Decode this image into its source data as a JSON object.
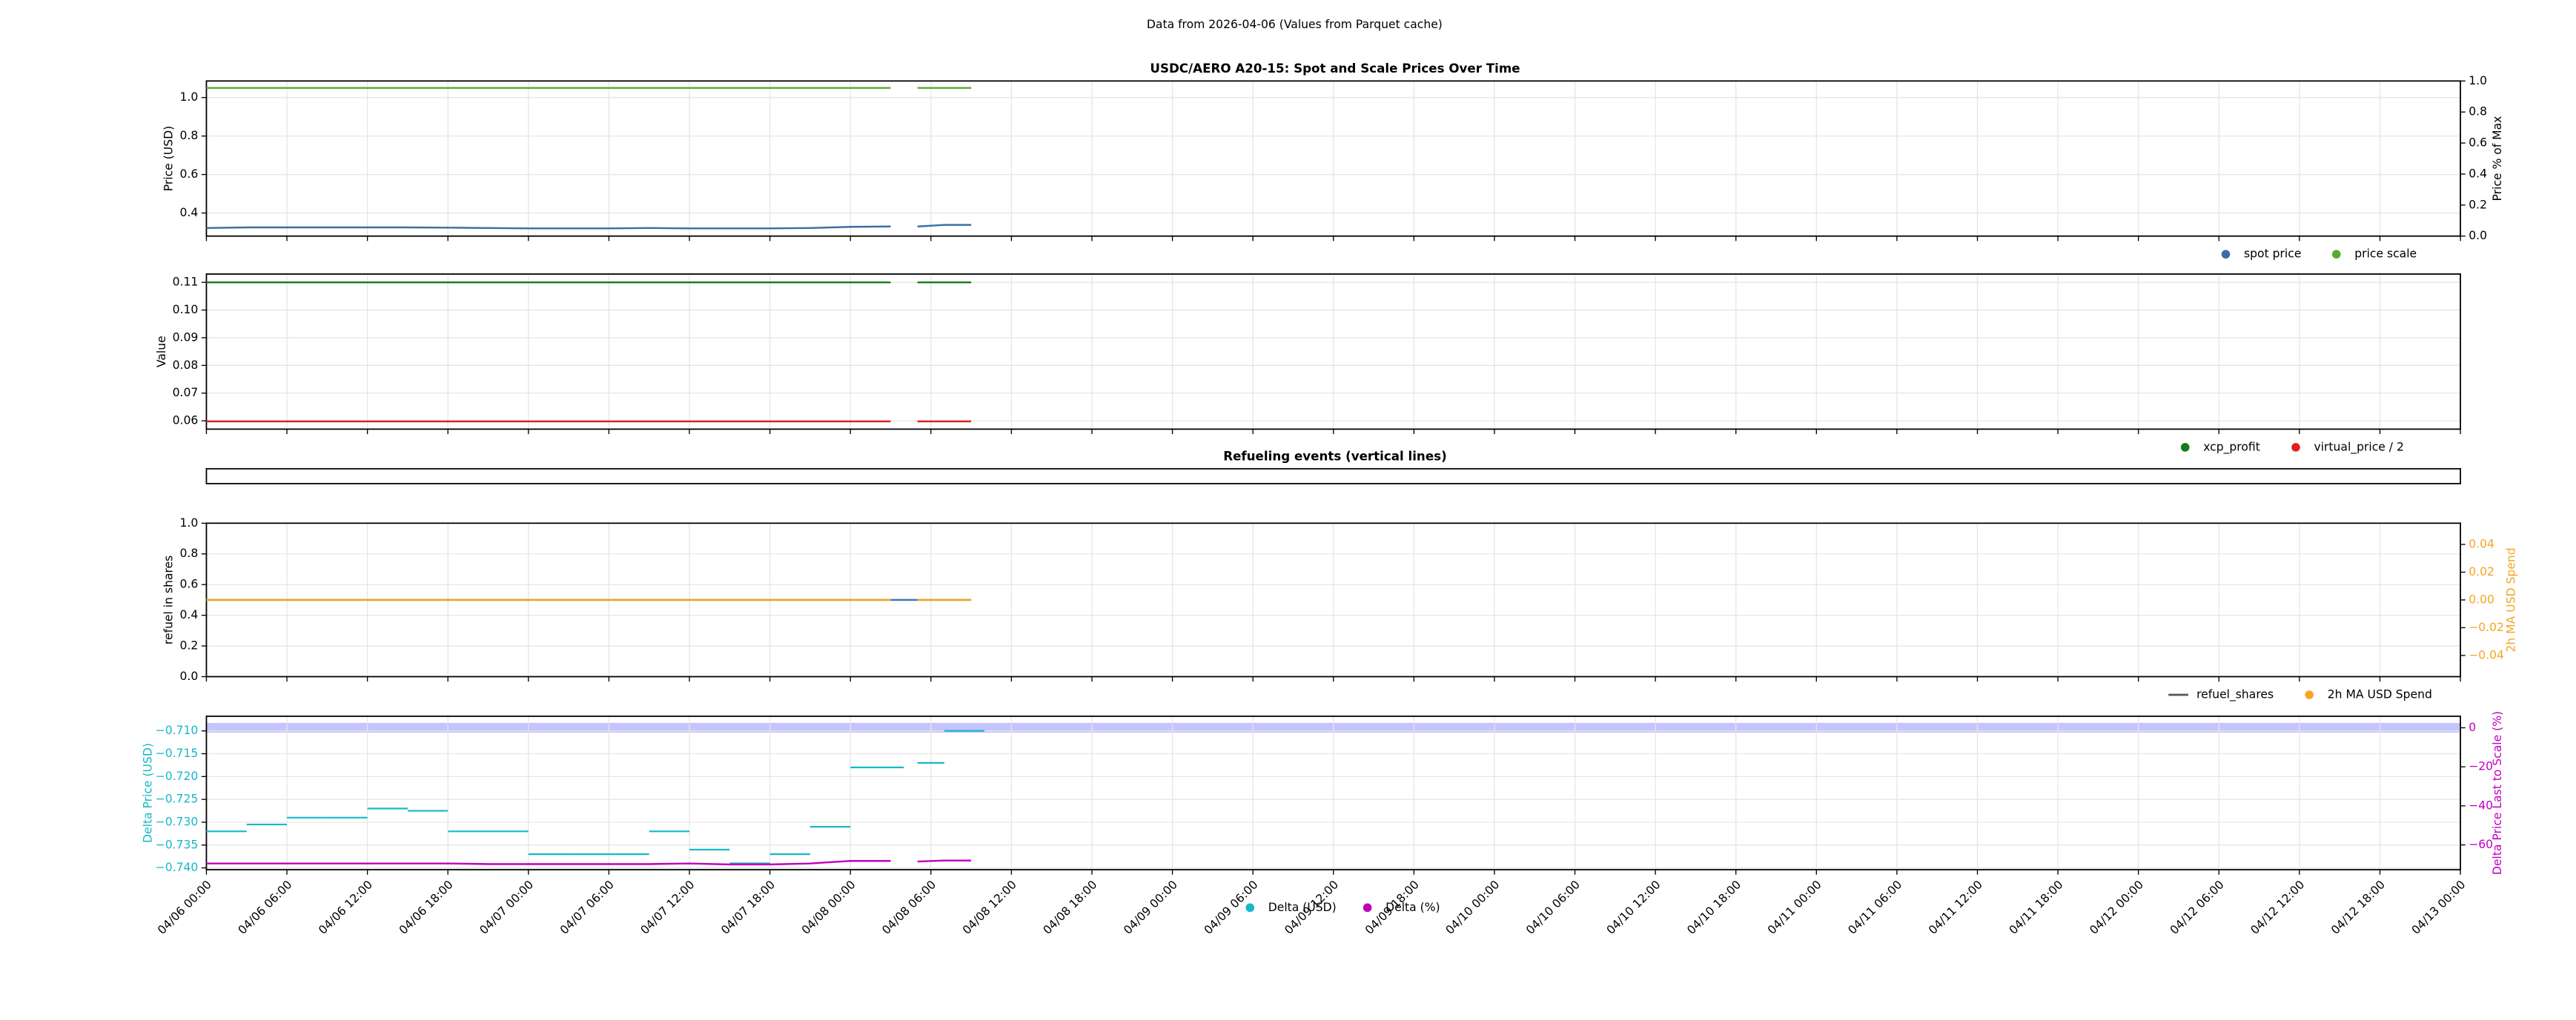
{
  "suptitle": "Data from 2026-04-06 (Values from Parquet cache)",
  "chart_data": [
    {
      "type": "line",
      "title": "USDC/AERO A20-15: Spot and Scale Prices Over Time",
      "ylabel": "Price (USD)",
      "y2label": "Price % of Max",
      "xlim": [
        0,
        168
      ],
      "xticks": [
        0,
        6,
        12,
        18,
        24,
        30,
        36,
        42,
        48,
        54,
        60,
        66,
        72,
        78,
        84,
        90,
        96,
        102,
        108,
        114,
        120,
        126,
        132,
        138,
        144,
        150,
        156,
        162,
        168
      ],
      "ylim": [
        0.28,
        1.086
      ],
      "yticks": [
        0.4,
        0.6,
        0.8,
        {
          "value": 1,
          "label": "1.0"
        }
      ],
      "y2lim": [
        0,
        1
      ],
      "y2ticks": [
        {
          "value": 0,
          "label": "0.0"
        },
        0.2,
        0.4,
        0.6,
        0.8,
        {
          "value": 1,
          "label": "1.0"
        }
      ],
      "grid": true,
      "legend": "below-right",
      "x": [
        0,
        3,
        6,
        9,
        12,
        15,
        18,
        21,
        24,
        27,
        30,
        33,
        36,
        39,
        42,
        45,
        48,
        51,
        52,
        53,
        55,
        57
      ],
      "series": [
        {
          "name": "spot price",
          "color": "#3a6ea5",
          "marker": "dot",
          "values": [
            0.322,
            0.325,
            0.325,
            0.325,
            0.325,
            0.325,
            0.324,
            0.322,
            0.32,
            0.32,
            0.32,
            0.322,
            0.32,
            0.32,
            0.32,
            0.322,
            0.328,
            0.33,
            null,
            0.33,
            0.338,
            0.338
          ]
        },
        {
          "name": "price scale",
          "color": "#5ca832",
          "marker": "dot",
          "values": [
            1.05,
            1.05,
            1.05,
            1.05,
            1.05,
            1.05,
            1.05,
            1.05,
            1.05,
            1.05,
            1.05,
            1.05,
            1.05,
            1.05,
            1.05,
            1.05,
            1.05,
            1.05,
            null,
            1.05,
            1.05,
            1.05
          ]
        }
      ]
    },
    {
      "type": "line",
      "ylabel": "Value",
      "xlim": [
        0,
        168
      ],
      "xticks": [
        0,
        6,
        12,
        18,
        24,
        30,
        36,
        42,
        48,
        54,
        60,
        66,
        72,
        78,
        84,
        90,
        96,
        102,
        108,
        114,
        120,
        126,
        132,
        138,
        144,
        150,
        156,
        162,
        168
      ],
      "ylim": [
        0.057,
        0.113
      ],
      "yticks": [
        0.06,
        0.07,
        0.08,
        0.09,
        {
          "value": 0.1,
          "label": "0.10"
        },
        0.11
      ],
      "grid": true,
      "legend": "below-right",
      "x": [
        0,
        3,
        6,
        9,
        12,
        15,
        18,
        21,
        24,
        27,
        30,
        33,
        36,
        39,
        42,
        45,
        48,
        51,
        52,
        53,
        55,
        57
      ],
      "series": [
        {
          "name": "xcp_profit",
          "color": "#1a7a1a",
          "marker": "dot",
          "values": [
            0.11,
            0.11,
            0.11,
            0.11,
            0.11,
            0.11,
            0.11,
            0.11,
            0.11,
            0.11,
            0.11,
            0.11,
            0.11,
            0.11,
            0.11,
            0.11,
            0.11,
            0.11,
            null,
            0.11,
            0.11,
            0.11
          ]
        },
        {
          "name": "virtual_price / 2",
          "color": "#e02020",
          "marker": "dot",
          "values": [
            0.0598,
            0.0598,
            0.0598,
            0.0598,
            0.0598,
            0.0598,
            0.0598,
            0.0598,
            0.0598,
            0.0598,
            0.0598,
            0.0598,
            0.0598,
            0.0598,
            0.0598,
            0.0598,
            0.0598,
            0.0598,
            null,
            0.0598,
            0.0598,
            0.0598
          ]
        }
      ]
    },
    {
      "type": "line",
      "title": "Refueling events (vertical lines)",
      "xlim": [
        0,
        168
      ],
      "series": []
    },
    {
      "type": "line",
      "ylabel": "refuel in shares",
      "y2label": "2h MA USD Spend",
      "y2label_color": "#f5a623",
      "xlim": [
        0,
        168
      ],
      "xticks": [
        0,
        6,
        12,
        18,
        24,
        30,
        36,
        42,
        48,
        54,
        60,
        66,
        72,
        78,
        84,
        90,
        96,
        102,
        108,
        114,
        120,
        126,
        132,
        138,
        144,
        150,
        156,
        162,
        168
      ],
      "ylim": [
        0,
        1
      ],
      "yticks": [
        {
          "value": 0,
          "label": "0.0"
        },
        0.2,
        0.4,
        0.6,
        0.8,
        {
          "value": 1,
          "label": "1.0"
        }
      ],
      "y2lim": [
        -0.0553,
        0.0553
      ],
      "y2ticks": [
        {
          "value": -0.04,
          "label": "−0.04"
        },
        {
          "value": -0.02,
          "label": "−0.02"
        },
        {
          "value": 0,
          "label": "0.00"
        },
        0.02,
        0.04
      ],
      "grid": true,
      "legend": "below-right",
      "x": [
        0,
        3,
        6,
        9,
        12,
        15,
        18,
        21,
        24,
        27,
        30,
        33,
        36,
        39,
        42,
        45,
        48,
        51,
        52,
        53,
        55,
        57
      ],
      "series": [
        {
          "name": "refuel_shares",
          "color": "#4c72b0",
          "marker": "line",
          "values": [
            0.5,
            0.5,
            0.5,
            0.5,
            0.5,
            0.5,
            0.5,
            0.5,
            0.5,
            0.5,
            0.5,
            0.5,
            0.5,
            0.5,
            0.5,
            0.5,
            0.5,
            0.5,
            0.5,
            0.5,
            0.5,
            0.5
          ]
        },
        {
          "name": "2h MA USD Spend",
          "color": "#f5a623",
          "marker": "dot",
          "axis": "y2",
          "values": [
            0,
            0,
            0,
            0,
            0,
            0,
            0,
            0,
            0,
            0,
            0,
            0,
            0,
            0,
            0,
            0,
            0,
            0,
            null,
            0,
            0,
            0
          ]
        }
      ]
    },
    {
      "type": "line",
      "ylabel": "Delta Price (USD)",
      "y2label": "Delta Price Last to Scale (%)",
      "ylabel_color": "#17b8c8",
      "y2label_color": "#c000c0",
      "xlim": [
        0,
        168
      ],
      "xticks": [
        {
          "value": 0,
          "label": "04/06 00:00"
        },
        {
          "value": 6,
          "label": "04/06 06:00"
        },
        {
          "value": 12,
          "label": "04/06 12:00"
        },
        {
          "value": 18,
          "label": "04/06 18:00"
        },
        {
          "value": 24,
          "label": "04/07 00:00"
        },
        {
          "value": 30,
          "label": "04/07 06:00"
        },
        {
          "value": 36,
          "label": "04/07 12:00"
        },
        {
          "value": 42,
          "label": "04/07 18:00"
        },
        {
          "value": 48,
          "label": "04/08 00:00"
        },
        {
          "value": 54,
          "label": "04/08 06:00"
        },
        {
          "value": 60,
          "label": "04/08 12:00"
        },
        {
          "value": 66,
          "label": "04/08 18:00"
        },
        {
          "value": 72,
          "label": "04/09 00:00"
        },
        {
          "value": 78,
          "label": "04/09 06:00"
        },
        {
          "value": 84,
          "label": "04/09 12:00"
        },
        {
          "value": 90,
          "label": "04/09 18:00"
        },
        {
          "value": 96,
          "label": "04/10 00:00"
        },
        {
          "value": 102,
          "label": "04/10 06:00"
        },
        {
          "value": 108,
          "label": "04/10 12:00"
        },
        {
          "value": 114,
          "label": "04/10 18:00"
        },
        {
          "value": 120,
          "label": "04/11 00:00"
        },
        {
          "value": 126,
          "label": "04/11 06:00"
        },
        {
          "value": 132,
          "label": "04/11 12:00"
        },
        {
          "value": 138,
          "label": "04/11 18:00"
        },
        {
          "value": 144,
          "label": "04/12 00:00"
        },
        {
          "value": 150,
          "label": "04/12 06:00"
        },
        {
          "value": 156,
          "label": "04/12 12:00"
        },
        {
          "value": 162,
          "label": "04/12 18:00"
        },
        {
          "value": 168,
          "label": "04/13 00:00"
        }
      ],
      "ylim": [
        -0.7404,
        -0.7068
      ],
      "yticks": [
        {
          "value": -0.74,
          "label": "−0.740"
        },
        {
          "value": -0.735,
          "label": "−0.735"
        },
        {
          "value": -0.73,
          "label": "−0.730"
        },
        {
          "value": -0.725,
          "label": "−0.725"
        },
        {
          "value": -0.72,
          "label": "−0.720"
        },
        {
          "value": -0.715,
          "label": "−0.715"
        },
        {
          "value": -0.71,
          "label": "−0.710"
        }
      ],
      "y2lim": [
        -72.7,
        5.9
      ],
      "y2ticks": [
        {
          "value": -60,
          "label": "−60"
        },
        {
          "value": -40,
          "label": "−40"
        },
        {
          "value": -20,
          "label": "−20"
        },
        0
      ],
      "band": [
        -2.5,
        2.5
      ],
      "band_color": "#c4c4ff",
      "grid": true,
      "legend": "below-center",
      "x": [
        0,
        3,
        6,
        9,
        12,
        15,
        18,
        21,
        24,
        27,
        30,
        33,
        36,
        39,
        42,
        45,
        48,
        51,
        52,
        53,
        55,
        57
      ],
      "series": [
        {
          "name": "Delta (USD)",
          "color": "#17b8c8",
          "marker": "dot",
          "style": "step-marks",
          "values": [
            -0.732,
            -0.7305,
            -0.729,
            -0.729,
            -0.727,
            -0.7275,
            -0.732,
            -0.732,
            -0.737,
            -0.737,
            -0.737,
            -0.732,
            -0.736,
            -0.739,
            -0.737,
            -0.731,
            -0.718,
            -0.718,
            null,
            -0.717,
            -0.71,
            -0.71
          ]
        },
        {
          "name": "Delta (%)",
          "color": "#c000c0",
          "marker": "dot",
          "axis": "y2",
          "values": [
            -69.5,
            -69.5,
            -69.5,
            -69.5,
            -69.5,
            -69.5,
            -69.5,
            -69.8,
            -69.8,
            -69.8,
            -69.8,
            -69.8,
            -69.5,
            -70,
            -70,
            -69.5,
            -68.2,
            -68.2,
            null,
            -68.5,
            -68,
            -68
          ]
        }
      ]
    }
  ]
}
